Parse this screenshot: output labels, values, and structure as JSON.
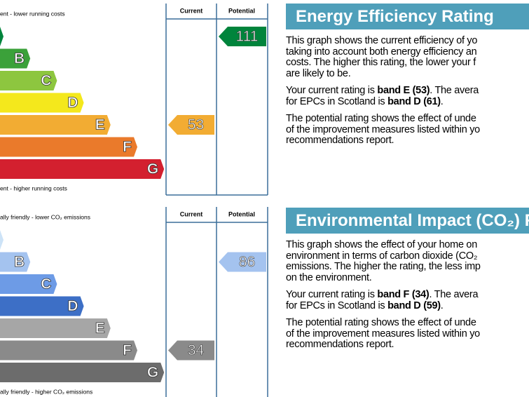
{
  "ratings": [
    {
      "header_top": "ent - lower running costs",
      "header_bottom": "ent - higher running costs",
      "column_current": "Current",
      "column_potential": "Potential",
      "bands": [
        {
          "letter": null,
          "color": "#00843c"
        },
        {
          "letter": "B",
          "color": "#3ba13a"
        },
        {
          "letter": "C",
          "color": "#8dc63f"
        },
        {
          "letter": "D",
          "color": "#f4e81c"
        },
        {
          "letter": "E",
          "color": "#f2ac33"
        },
        {
          "letter": "F",
          "color": "#ea7a2b"
        },
        {
          "letter": "G",
          "color": "#d3202f"
        }
      ],
      "current": 53,
      "potential": 111
    },
    {
      "header_top": "ally friendly - lower CO₂ emissions",
      "header_bottom": "ally friendly - higher CO₂ emissions",
      "column_current": "Current",
      "column_potential": "Potential",
      "bands": [
        {
          "letter": null,
          "color": "#cde3f7"
        },
        {
          "letter": "B",
          "color": "#a4c3ef"
        },
        {
          "letter": "C",
          "color": "#6d9be6"
        },
        {
          "letter": "D",
          "color": "#3d6fc6"
        },
        {
          "letter": "E",
          "color": "#a6a6a6"
        },
        {
          "letter": "F",
          "color": "#8a8a8a"
        },
        {
          "letter": "G",
          "color": "#6c6c6c"
        }
      ],
      "current": 34,
      "potential": 86
    }
  ],
  "panels": [
    {
      "title": "Energy Efficiency Rating",
      "paragraphs": [
        [
          [
            "This graph shows the current efficiency of yo"
          ],
          [
            "taking into account both energy efficiency an"
          ],
          [
            "costs. The higher this rating, the lower your f"
          ],
          [
            "are likely to be."
          ]
        ],
        [
          [
            "Your current rating is ",
            "band E (53)",
            ". The avera"
          ],
          [
            "for EPCs in Scotland is ",
            "band D (61)",
            "."
          ]
        ],
        [
          [
            "The potential rating shows the effect of unde"
          ],
          [
            "of the improvement measures listed within yo"
          ],
          [
            "recommendations report."
          ]
        ]
      ]
    },
    {
      "title": "Environmental Impact (CO₂) R",
      "paragraphs": [
        [
          [
            "This graph shows the effect of your home on"
          ],
          [
            "environment in terms of carbon dioxide (CO₂"
          ],
          [
            "emissions. The higher the rating, the less imp"
          ],
          [
            "on the environment."
          ]
        ],
        [
          [
            "Your current rating is ",
            "band F (34)",
            ". The avera"
          ],
          [
            "for EPCs in Scotland is ",
            "band D (59)",
            "."
          ]
        ],
        [
          [
            "The potential rating shows the effect of unde"
          ],
          [
            "of the improvement measures listed within yo"
          ],
          [
            "recommendations report."
          ]
        ]
      ]
    }
  ]
}
